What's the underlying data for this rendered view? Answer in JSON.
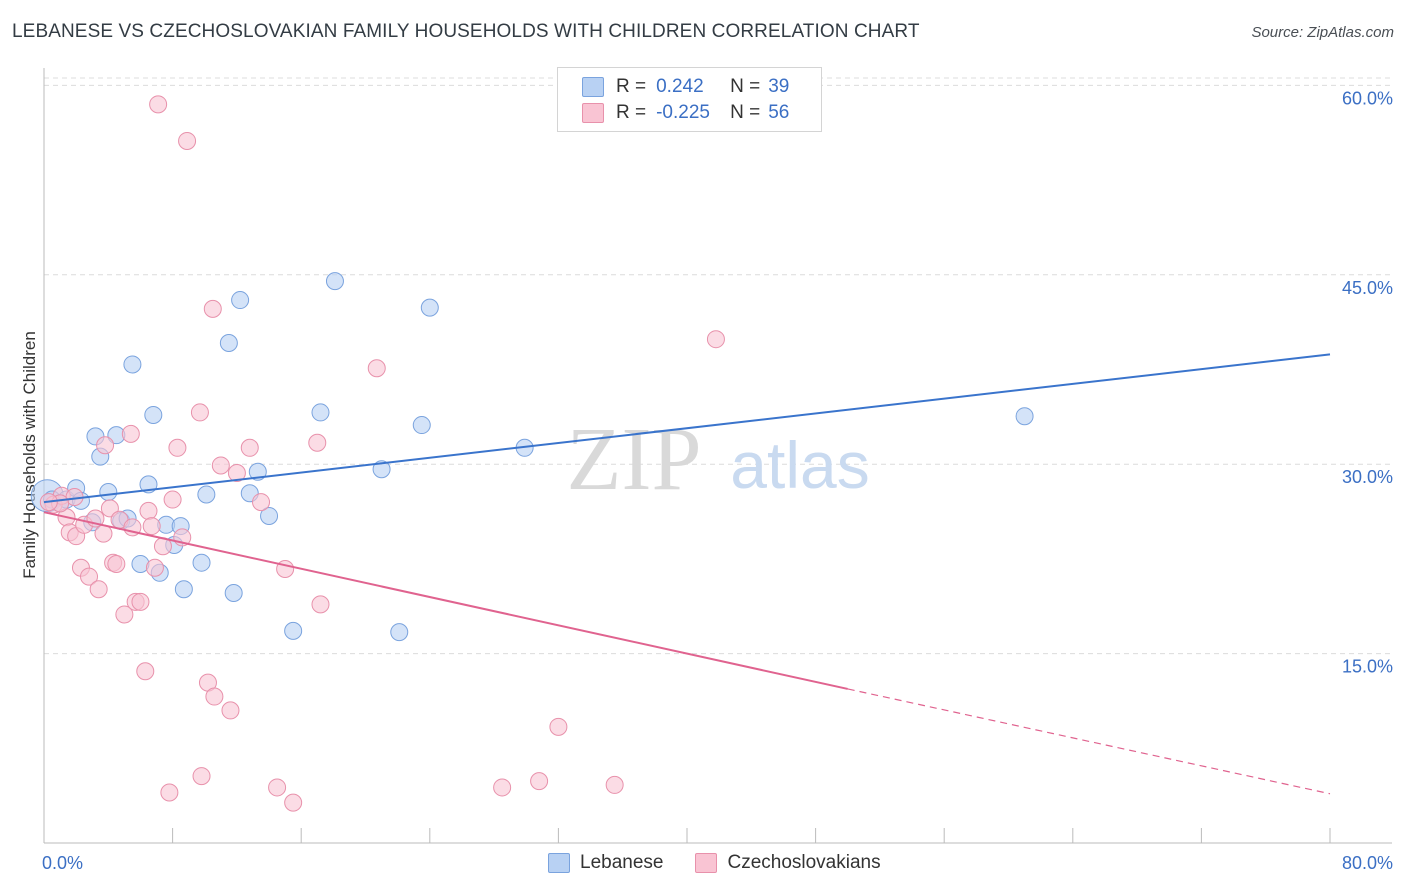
{
  "title": "LEBANESE VS CZECHOSLOVAKIAN FAMILY HOUSEHOLDS WITH CHILDREN CORRELATION CHART",
  "source": "Source: ZipAtlas.com",
  "watermark": {
    "zip": "ZIP",
    "atlas": "atlas"
  },
  "legend": {
    "r_label": "R =",
    "n_label": "N =",
    "rows": [
      {
        "r": "0.242",
        "n": "39",
        "fill": "#b8d1f3",
        "stroke": "#7aa3de"
      },
      {
        "r": "-0.225",
        "n": "56",
        "fill": "#f9c4d3",
        "stroke": "#e891ab"
      }
    ]
  },
  "colors": {
    "blue": "#3a74cc",
    "pink": "#e0638f",
    "blue_fill": "#b8d1f3",
    "pink_fill": "#f9c4d3",
    "axis_text": "#3b6fc4",
    "grid": "#dcdcdc"
  },
  "chart_data": {
    "type": "scatter",
    "title": "LEBANESE VS CZECHOSLOVAKIAN FAMILY HOUSEHOLDS WITH CHILDREN CORRELATION CHART",
    "xlabel": "",
    "ylabel": "Family Households with Children",
    "xlim": [
      0,
      80
    ],
    "ylim": [
      0,
      63
    ],
    "y_ticks": [
      15,
      30,
      45,
      60
    ],
    "y_tick_labels": [
      "15.0%",
      "30.0%",
      "45.0%",
      "60.0%"
    ],
    "x_tick_labels": [
      "0.0%",
      "80.0%"
    ],
    "legend_position": "top-center",
    "grid": true,
    "series": [
      {
        "name": "Lebanese",
        "color": "#3a74cc",
        "points": [
          [
            0.2,
            27.5
          ],
          [
            0.5,
            27.2
          ],
          [
            1.0,
            26.9
          ],
          [
            1.4,
            27.2
          ],
          [
            2.0,
            28.1
          ],
          [
            2.3,
            27.1
          ],
          [
            3.2,
            32.2
          ],
          [
            3.5,
            30.6
          ],
          [
            4.0,
            27.8
          ],
          [
            4.5,
            32.3
          ],
          [
            4.8,
            25.5
          ],
          [
            5.2,
            25.7
          ],
          [
            5.5,
            37.9
          ],
          [
            6.0,
            22.1
          ],
          [
            6.5,
            28.4
          ],
          [
            6.8,
            33.9
          ],
          [
            7.2,
            21.4
          ],
          [
            7.6,
            25.2
          ],
          [
            8.1,
            23.6
          ],
          [
            8.5,
            25.1
          ],
          [
            8.7,
            20.1
          ],
          [
            9.8,
            22.2
          ],
          [
            10.1,
            27.6
          ],
          [
            11.5,
            39.6
          ],
          [
            11.8,
            19.8
          ],
          [
            12.2,
            43.0
          ],
          [
            12.8,
            27.7
          ],
          [
            13.3,
            29.4
          ],
          [
            14.0,
            25.9
          ],
          [
            15.5,
            16.8
          ],
          [
            17.2,
            34.1
          ],
          [
            18.1,
            44.5
          ],
          [
            21.0,
            29.6
          ],
          [
            22.1,
            16.7
          ],
          [
            23.5,
            33.1
          ],
          [
            24.0,
            42.4
          ],
          [
            29.9,
            31.3
          ],
          [
            61.0,
            33.8
          ],
          [
            3.0,
            25.4
          ]
        ],
        "trend": {
          "x": [
            0,
            80
          ],
          "y": [
            27.0,
            38.7
          ]
        }
      },
      {
        "name": "Czechoslovakians",
        "color": "#e0638f",
        "points": [
          [
            0.6,
            26.8
          ],
          [
            1.1,
            27.5
          ],
          [
            1.4,
            25.8
          ],
          [
            1.6,
            24.6
          ],
          [
            1.9,
            27.4
          ],
          [
            2.0,
            24.3
          ],
          [
            2.3,
            21.8
          ],
          [
            2.5,
            25.2
          ],
          [
            2.8,
            21.1
          ],
          [
            3.2,
            25.7
          ],
          [
            3.4,
            20.1
          ],
          [
            3.7,
            24.5
          ],
          [
            3.8,
            31.5
          ],
          [
            4.1,
            26.5
          ],
          [
            4.3,
            22.2
          ],
          [
            4.5,
            22.1
          ],
          [
            4.7,
            25.6
          ],
          [
            5.0,
            18.1
          ],
          [
            5.4,
            32.4
          ],
          [
            5.5,
            25.0
          ],
          [
            5.7,
            19.1
          ],
          [
            6.0,
            19.1
          ],
          [
            6.3,
            13.6
          ],
          [
            6.5,
            26.3
          ],
          [
            6.7,
            25.1
          ],
          [
            6.9,
            21.8
          ],
          [
            7.1,
            58.5
          ],
          [
            7.4,
            23.5
          ],
          [
            7.8,
            4.0
          ],
          [
            8.0,
            27.2
          ],
          [
            8.3,
            31.3
          ],
          [
            8.6,
            24.2
          ],
          [
            8.9,
            55.6
          ],
          [
            9.7,
            34.1
          ],
          [
            9.8,
            5.3
          ],
          [
            10.2,
            12.7
          ],
          [
            10.5,
            42.3
          ],
          [
            10.6,
            11.6
          ],
          [
            11.0,
            29.9
          ],
          [
            11.6,
            10.5
          ],
          [
            12.0,
            29.3
          ],
          [
            12.8,
            31.3
          ],
          [
            13.5,
            27.0
          ],
          [
            14.5,
            4.4
          ],
          [
            15.0,
            21.7
          ],
          [
            15.5,
            3.2
          ],
          [
            17.0,
            31.7
          ],
          [
            17.2,
            18.9
          ],
          [
            20.7,
            37.6
          ],
          [
            28.5,
            4.4
          ],
          [
            30.8,
            4.9
          ],
          [
            32.0,
            9.2
          ],
          [
            35.5,
            4.6
          ],
          [
            41.8,
            39.9
          ],
          [
            1.0,
            26.9
          ],
          [
            0.3,
            27.0
          ]
        ],
        "trend": {
          "x": [
            0,
            50
          ],
          "y": [
            26.2,
            12.2
          ]
        },
        "trend_dashed": {
          "x": [
            50,
            80
          ],
          "y": [
            12.2,
            3.9
          ]
        }
      }
    ]
  },
  "bottom_legend": [
    {
      "label": "Lebanese",
      "fill": "#b8d1f3",
      "stroke": "#7aa3de"
    },
    {
      "label": "Czechoslovakians",
      "fill": "#f9c4d3",
      "stroke": "#e891ab"
    }
  ]
}
